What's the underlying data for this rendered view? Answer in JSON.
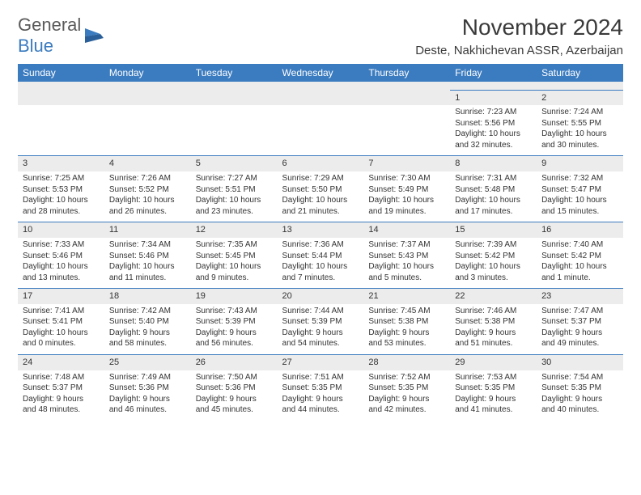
{
  "logo": {
    "text1": "General",
    "text2": "Blue"
  },
  "title": "November 2024",
  "location": "Deste, Nakhichevan ASSR, Azerbaijan",
  "colors": {
    "header_bg": "#3b7bbf",
    "header_fg": "#ffffff",
    "row_stripe": "#ececec",
    "divider": "#3b7bbf",
    "text": "#333333",
    "logo_gray": "#5a5a5a",
    "logo_blue": "#3b7bbf",
    "background": "#ffffff"
  },
  "typography": {
    "title_fontsize": 28,
    "location_fontsize": 15,
    "header_fontsize": 12,
    "cell_fontsize": 10,
    "daynum_fontsize": 11
  },
  "weekdays": [
    "Sunday",
    "Monday",
    "Tuesday",
    "Wednesday",
    "Thursday",
    "Friday",
    "Saturday"
  ],
  "weeks": [
    [
      null,
      null,
      null,
      null,
      null,
      {
        "n": "1",
        "sr": "Sunrise: 7:23 AM",
        "ss": "Sunset: 5:56 PM",
        "dl1": "Daylight: 10 hours",
        "dl2": "and 32 minutes."
      },
      {
        "n": "2",
        "sr": "Sunrise: 7:24 AM",
        "ss": "Sunset: 5:55 PM",
        "dl1": "Daylight: 10 hours",
        "dl2": "and 30 minutes."
      }
    ],
    [
      {
        "n": "3",
        "sr": "Sunrise: 7:25 AM",
        "ss": "Sunset: 5:53 PM",
        "dl1": "Daylight: 10 hours",
        "dl2": "and 28 minutes."
      },
      {
        "n": "4",
        "sr": "Sunrise: 7:26 AM",
        "ss": "Sunset: 5:52 PM",
        "dl1": "Daylight: 10 hours",
        "dl2": "and 26 minutes."
      },
      {
        "n": "5",
        "sr": "Sunrise: 7:27 AM",
        "ss": "Sunset: 5:51 PM",
        "dl1": "Daylight: 10 hours",
        "dl2": "and 23 minutes."
      },
      {
        "n": "6",
        "sr": "Sunrise: 7:29 AM",
        "ss": "Sunset: 5:50 PM",
        "dl1": "Daylight: 10 hours",
        "dl2": "and 21 minutes."
      },
      {
        "n": "7",
        "sr": "Sunrise: 7:30 AM",
        "ss": "Sunset: 5:49 PM",
        "dl1": "Daylight: 10 hours",
        "dl2": "and 19 minutes."
      },
      {
        "n": "8",
        "sr": "Sunrise: 7:31 AM",
        "ss": "Sunset: 5:48 PM",
        "dl1": "Daylight: 10 hours",
        "dl2": "and 17 minutes."
      },
      {
        "n": "9",
        "sr": "Sunrise: 7:32 AM",
        "ss": "Sunset: 5:47 PM",
        "dl1": "Daylight: 10 hours",
        "dl2": "and 15 minutes."
      }
    ],
    [
      {
        "n": "10",
        "sr": "Sunrise: 7:33 AM",
        "ss": "Sunset: 5:46 PM",
        "dl1": "Daylight: 10 hours",
        "dl2": "and 13 minutes."
      },
      {
        "n": "11",
        "sr": "Sunrise: 7:34 AM",
        "ss": "Sunset: 5:46 PM",
        "dl1": "Daylight: 10 hours",
        "dl2": "and 11 minutes."
      },
      {
        "n": "12",
        "sr": "Sunrise: 7:35 AM",
        "ss": "Sunset: 5:45 PM",
        "dl1": "Daylight: 10 hours",
        "dl2": "and 9 minutes."
      },
      {
        "n": "13",
        "sr": "Sunrise: 7:36 AM",
        "ss": "Sunset: 5:44 PM",
        "dl1": "Daylight: 10 hours",
        "dl2": "and 7 minutes."
      },
      {
        "n": "14",
        "sr": "Sunrise: 7:37 AM",
        "ss": "Sunset: 5:43 PM",
        "dl1": "Daylight: 10 hours",
        "dl2": "and 5 minutes."
      },
      {
        "n": "15",
        "sr": "Sunrise: 7:39 AM",
        "ss": "Sunset: 5:42 PM",
        "dl1": "Daylight: 10 hours",
        "dl2": "and 3 minutes."
      },
      {
        "n": "16",
        "sr": "Sunrise: 7:40 AM",
        "ss": "Sunset: 5:42 PM",
        "dl1": "Daylight: 10 hours",
        "dl2": "and 1 minute."
      }
    ],
    [
      {
        "n": "17",
        "sr": "Sunrise: 7:41 AM",
        "ss": "Sunset: 5:41 PM",
        "dl1": "Daylight: 10 hours",
        "dl2": "and 0 minutes."
      },
      {
        "n": "18",
        "sr": "Sunrise: 7:42 AM",
        "ss": "Sunset: 5:40 PM",
        "dl1": "Daylight: 9 hours",
        "dl2": "and 58 minutes."
      },
      {
        "n": "19",
        "sr": "Sunrise: 7:43 AM",
        "ss": "Sunset: 5:39 PM",
        "dl1": "Daylight: 9 hours",
        "dl2": "and 56 minutes."
      },
      {
        "n": "20",
        "sr": "Sunrise: 7:44 AM",
        "ss": "Sunset: 5:39 PM",
        "dl1": "Daylight: 9 hours",
        "dl2": "and 54 minutes."
      },
      {
        "n": "21",
        "sr": "Sunrise: 7:45 AM",
        "ss": "Sunset: 5:38 PM",
        "dl1": "Daylight: 9 hours",
        "dl2": "and 53 minutes."
      },
      {
        "n": "22",
        "sr": "Sunrise: 7:46 AM",
        "ss": "Sunset: 5:38 PM",
        "dl1": "Daylight: 9 hours",
        "dl2": "and 51 minutes."
      },
      {
        "n": "23",
        "sr": "Sunrise: 7:47 AM",
        "ss": "Sunset: 5:37 PM",
        "dl1": "Daylight: 9 hours",
        "dl2": "and 49 minutes."
      }
    ],
    [
      {
        "n": "24",
        "sr": "Sunrise: 7:48 AM",
        "ss": "Sunset: 5:37 PM",
        "dl1": "Daylight: 9 hours",
        "dl2": "and 48 minutes."
      },
      {
        "n": "25",
        "sr": "Sunrise: 7:49 AM",
        "ss": "Sunset: 5:36 PM",
        "dl1": "Daylight: 9 hours",
        "dl2": "and 46 minutes."
      },
      {
        "n": "26",
        "sr": "Sunrise: 7:50 AM",
        "ss": "Sunset: 5:36 PM",
        "dl1": "Daylight: 9 hours",
        "dl2": "and 45 minutes."
      },
      {
        "n": "27",
        "sr": "Sunrise: 7:51 AM",
        "ss": "Sunset: 5:35 PM",
        "dl1": "Daylight: 9 hours",
        "dl2": "and 44 minutes."
      },
      {
        "n": "28",
        "sr": "Sunrise: 7:52 AM",
        "ss": "Sunset: 5:35 PM",
        "dl1": "Daylight: 9 hours",
        "dl2": "and 42 minutes."
      },
      {
        "n": "29",
        "sr": "Sunrise: 7:53 AM",
        "ss": "Sunset: 5:35 PM",
        "dl1": "Daylight: 9 hours",
        "dl2": "and 41 minutes."
      },
      {
        "n": "30",
        "sr": "Sunrise: 7:54 AM",
        "ss": "Sunset: 5:35 PM",
        "dl1": "Daylight: 9 hours",
        "dl2": "and 40 minutes."
      }
    ]
  ]
}
